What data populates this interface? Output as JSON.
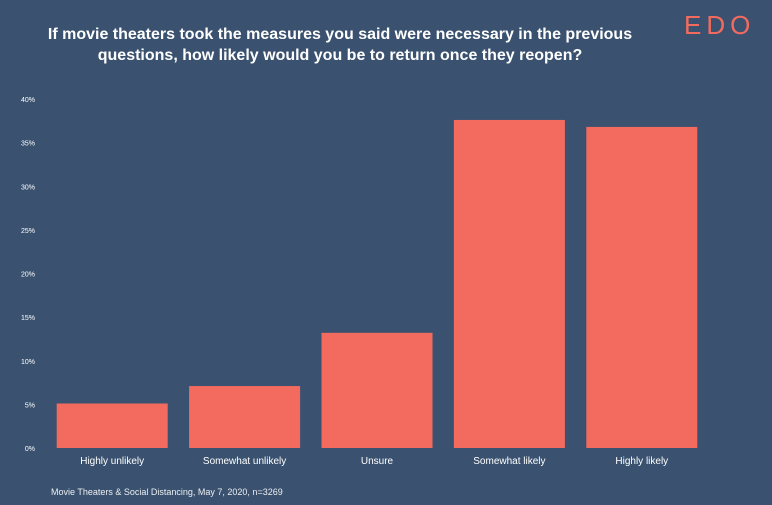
{
  "brand": {
    "logo_text": "EDO",
    "logo_color": "#f36a5e"
  },
  "colors": {
    "background": "#3a5270",
    "bar": "#f36a5e",
    "text": "#ffffff"
  },
  "chart_data": {
    "type": "bar",
    "title": "If movie theaters took the measures you said were necessary in the previous questions, how likely would you be to return once they reopen?",
    "categories": [
      "Highly unlikely",
      "Somewhat unlikely",
      "Unsure",
      "Somewhat likely",
      "Highly likely"
    ],
    "values": [
      5.1,
      7.1,
      13.2,
      37.6,
      36.8
    ],
    "xlabel": "",
    "ylabel": "",
    "ylim": [
      0,
      40
    ],
    "yticks": [
      0,
      5,
      10,
      15,
      20,
      25,
      30,
      35,
      40
    ],
    "ytick_labels": [
      "0%",
      "5%",
      "10%",
      "15%",
      "20%",
      "25%",
      "30%",
      "35%",
      "40%"
    ],
    "grid": false,
    "legend": "none"
  },
  "footer": {
    "source": "Movie Theaters & Social Distancing, May 7, 2020, n=3269"
  }
}
